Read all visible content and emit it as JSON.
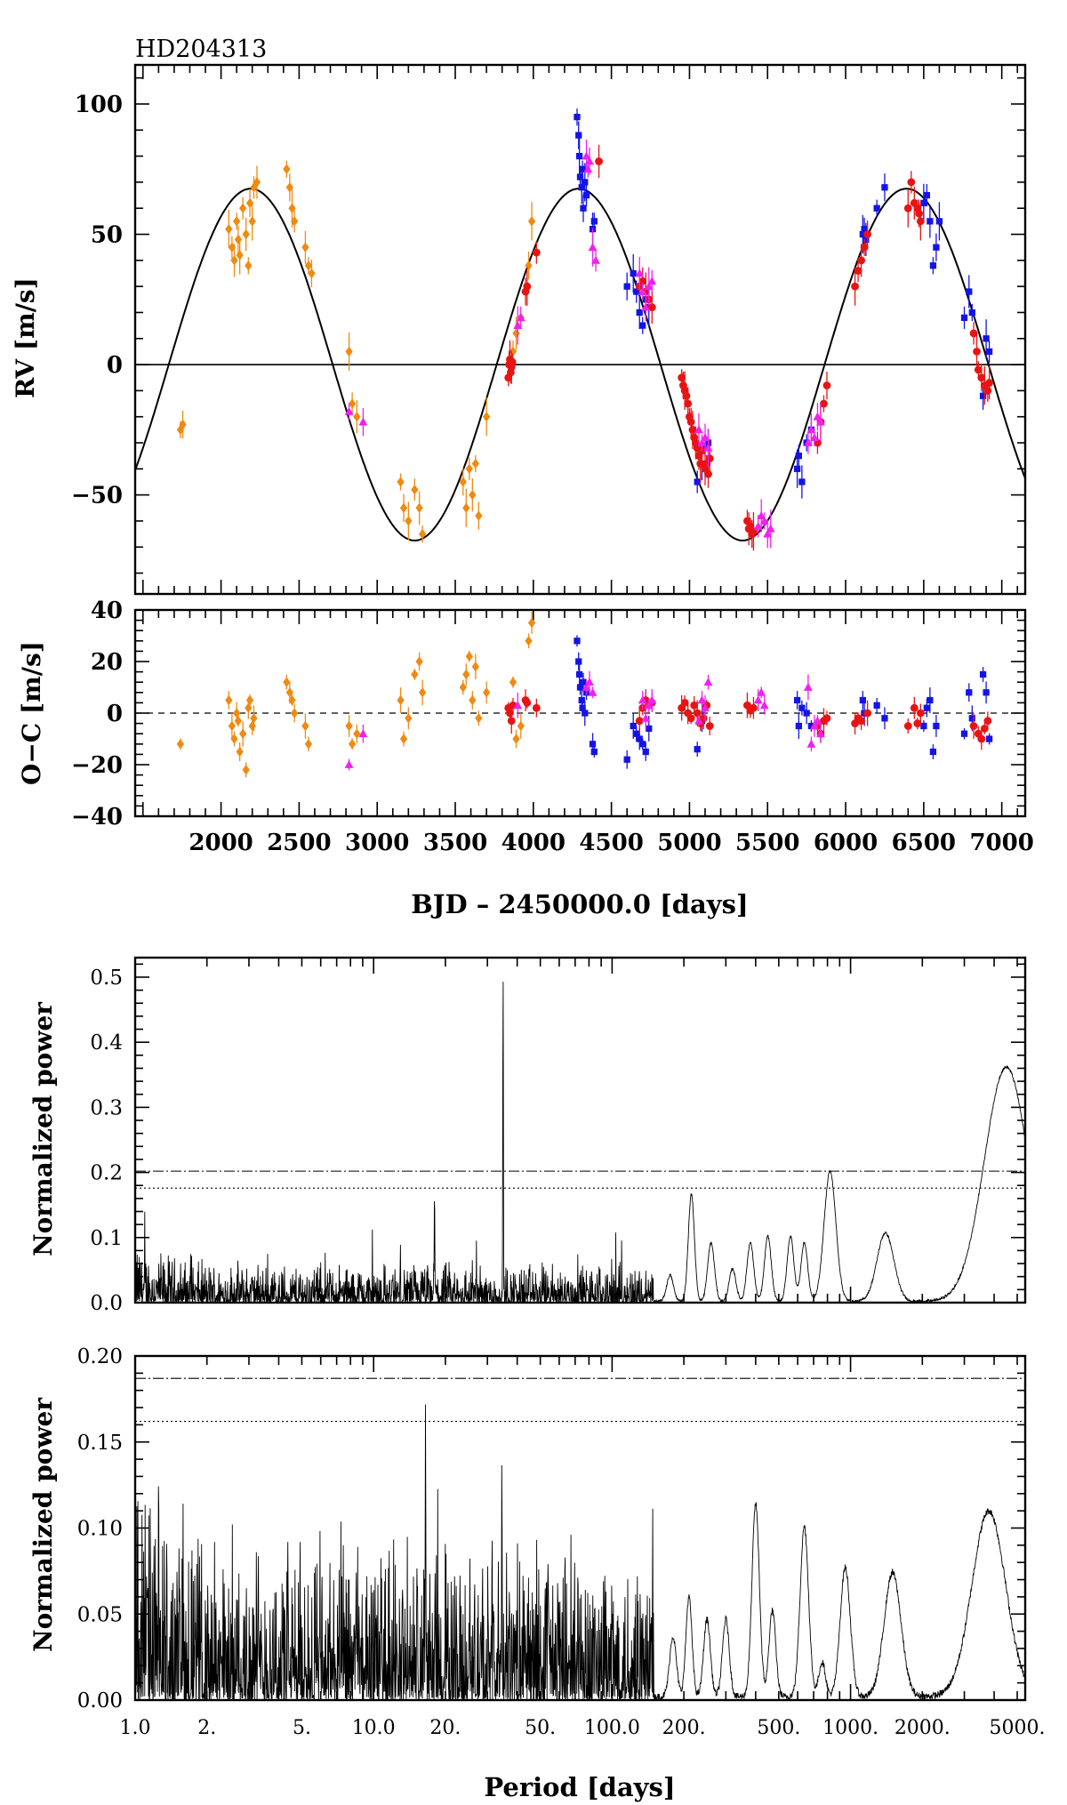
{
  "colors": {
    "harps_old": "#f08a10",
    "harps_new": "#1414e6",
    "hires": "#e81414",
    "keck": "#ee22ee",
    "curve": "#000000"
  },
  "chart_data": [
    {
      "type": "scatter",
      "id": "rv",
      "title": "HD204313",
      "xlabel": "",
      "ylabel": "RV [m/s]",
      "xlim": [
        1450,
        7150
      ],
      "ylim": [
        -88,
        115
      ],
      "yticks": [
        -50,
        0,
        50,
        100
      ],
      "ytick_labels": [
        "−50",
        "0",
        "50",
        "100"
      ],
      "model": {
        "amplitude": 67.5,
        "period": 2100,
        "t_zero": 1665,
        "description": "Keplerian fit"
      },
      "series": [
        {
          "name": "set1",
          "marker": "diamond",
          "color": "#f08a10",
          "x": [
            1740,
            1755,
            2050,
            2070,
            2085,
            2100,
            2110,
            2120,
            2140,
            2160,
            2175,
            2185,
            2200,
            2210,
            2230,
            2420,
            2440,
            2455,
            2470,
            2540,
            2560,
            2580,
            2820,
            2840,
            2870,
            3150,
            3170,
            3200,
            3240,
            3270,
            3290,
            3550,
            3570,
            3590,
            3610,
            3630,
            3650,
            3700,
            3870,
            3890,
            3920,
            3970,
            3990
          ],
          "y": [
            -25,
            -23,
            52,
            45,
            40,
            55,
            48,
            42,
            60,
            50,
            38,
            62,
            55,
            68,
            70,
            75,
            68,
            60,
            55,
            45,
            38,
            35,
            5,
            -15,
            -20,
            -45,
            -55,
            -60,
            -48,
            -55,
            -65,
            -45,
            -55,
            -40,
            -50,
            -38,
            -58,
            -20,
            5,
            12,
            18,
            38,
            55
          ]
        },
        {
          "name": "set2",
          "marker": "square",
          "color": "#1414e6",
          "x": [
            4280,
            4290,
            4295,
            4300,
            4310,
            4315,
            4320,
            4330,
            4340,
            4380,
            4390,
            4600,
            4640,
            4660,
            4680,
            4700,
            4720,
            4740,
            5050,
            5080,
            5100,
            5120,
            5690,
            5700,
            5720,
            5750,
            5780,
            6110,
            6120,
            6130,
            6200,
            6250,
            6500,
            6520,
            6540,
            6560,
            6580,
            6600,
            6760,
            6790,
            6810,
            6880,
            6900,
            6920
          ],
          "y": [
            95,
            88,
            80,
            72,
            68,
            75,
            60,
            70,
            65,
            52,
            55,
            30,
            35,
            28,
            20,
            15,
            25,
            22,
            -45,
            -38,
            -32,
            -30,
            -40,
            -35,
            -45,
            -30,
            -25,
            50,
            52,
            48,
            60,
            68,
            62,
            65,
            55,
            38,
            45,
            55,
            18,
            28,
            20,
            -12,
            10,
            5
          ]
        },
        {
          "name": "set3",
          "marker": "circle",
          "color": "#e81414",
          "x": [
            3840,
            3845,
            3850,
            3855,
            3860,
            3865,
            3950,
            3960,
            4020,
            4420,
            4680,
            4700,
            4720,
            4740,
            4760,
            4950,
            4960,
            4970,
            4980,
            4990,
            5000,
            5010,
            5020,
            5030,
            5040,
            5050,
            5060,
            5070,
            5080,
            5100,
            5110,
            5120,
            5130,
            5370,
            5380,
            5390,
            5400,
            5410,
            5820,
            5840,
            5860,
            5880,
            6060,
            6080,
            6100,
            6120,
            6140,
            6400,
            6420,
            6440,
            6460,
            6470,
            6480,
            6820,
            6840,
            6850,
            6870,
            6890,
            6910,
            6920
          ],
          "y": [
            -5,
            0,
            2,
            -3,
            -1,
            1,
            28,
            30,
            43,
            78,
            30,
            32,
            28,
            25,
            22,
            -5,
            -8,
            -10,
            -12,
            -15,
            -20,
            -22,
            -25,
            -28,
            -30,
            -32,
            -35,
            -38,
            -33,
            -40,
            -38,
            -42,
            -36,
            -60,
            -63,
            -62,
            -65,
            -64,
            -30,
            -22,
            -15,
            -8,
            30,
            36,
            40,
            45,
            50,
            60,
            70,
            62,
            60,
            58,
            55,
            12,
            5,
            -2,
            -5,
            -8,
            -10,
            -7
          ]
        },
        {
          "name": "set4",
          "marker": "triangle",
          "color": "#ee22ee",
          "x": [
            2820,
            2910,
            3900,
            3920,
            4340,
            4350,
            4360,
            4380,
            4400,
            4680,
            4700,
            4720,
            4740,
            4760,
            5060,
            5080,
            5100,
            5120,
            5440,
            5460,
            5480,
            5500,
            5520,
            5760,
            5780,
            5800,
            5820,
            5840
          ],
          "y": [
            -18,
            -22,
            15,
            18,
            80,
            75,
            78,
            45,
            40,
            35,
            28,
            22,
            30,
            32,
            -25,
            -30,
            -28,
            -32,
            -62,
            -58,
            -60,
            -65,
            -63,
            -30,
            -25,
            -28,
            -20,
            -22
          ]
        }
      ]
    },
    {
      "type": "scatter",
      "id": "oc",
      "title": "",
      "xlabel": "BJD – 2450000.0 [days]",
      "ylabel": "O−C [m/s]",
      "xlim": [
        1450,
        7150
      ],
      "ylim": [
        -40,
        40
      ],
      "yticks": [
        -40,
        -20,
        0,
        20,
        40
      ],
      "ytick_labels": [
        "−40",
        "−20",
        "0",
        "20",
        "40"
      ],
      "xticks": [
        2000,
        2500,
        3000,
        3500,
        4000,
        4500,
        5000,
        5500,
        6000,
        6500,
        7000
      ],
      "xtick_labels": [
        "2000",
        "2500",
        "3000",
        "3500",
        "4000",
        "4500",
        "5000",
        "5500",
        "6000",
        "6500",
        "7000"
      ],
      "series": [
        {
          "name": "set1",
          "marker": "diamond",
          "color": "#f08a10",
          "x": [
            1740,
            2050,
            2070,
            2085,
            2100,
            2110,
            2120,
            2140,
            2160,
            2175,
            2185,
            2200,
            2210,
            2420,
            2440,
            2455,
            2470,
            2540,
            2560,
            2820,
            2840,
            2870,
            3150,
            3170,
            3200,
            3240,
            3270,
            3290,
            3550,
            3570,
            3590,
            3610,
            3630,
            3650,
            3700,
            3870,
            3890,
            3920,
            3970,
            3990
          ],
          "y": [
            -12,
            5,
            -5,
            -10,
            0,
            -3,
            -15,
            -8,
            -22,
            2,
            5,
            -5,
            -2,
            12,
            8,
            5,
            0,
            -5,
            -12,
            -5,
            -12,
            -8,
            5,
            -10,
            -2,
            15,
            20,
            8,
            10,
            15,
            22,
            5,
            18,
            -2,
            8,
            12,
            -10,
            -5,
            28,
            35
          ]
        },
        {
          "name": "set2",
          "marker": "square",
          "color": "#1414e6",
          "x": [
            4280,
            4290,
            4295,
            4300,
            4310,
            4315,
            4320,
            4330,
            4340,
            4380,
            4390,
            4600,
            4640,
            4660,
            4680,
            4700,
            4720,
            4740,
            5050,
            5080,
            5100,
            5690,
            5700,
            5720,
            5750,
            5780,
            6110,
            6120,
            6200,
            6250,
            6500,
            6520,
            6540,
            6560,
            6580,
            6760,
            6790,
            6810,
            6880,
            6900,
            6920
          ],
          "y": [
            28,
            20,
            15,
            10,
            5,
            2,
            12,
            0,
            8,
            -12,
            -15,
            -18,
            -5,
            -8,
            -10,
            -12,
            -15,
            -6,
            -14,
            -3,
            2,
            5,
            -5,
            2,
            0,
            -5,
            5,
            0,
            3,
            -2,
            -5,
            2,
            5,
            -15,
            -5,
            -8,
            8,
            -2,
            15,
            8,
            -10
          ]
        },
        {
          "name": "set3",
          "marker": "circle",
          "color": "#e81414",
          "x": [
            3840,
            3850,
            3860,
            3870,
            3950,
            3960,
            4020,
            4680,
            4700,
            4720,
            4740,
            4760,
            4950,
            4970,
            4990,
            5010,
            5030,
            5050,
            5070,
            5090,
            5110,
            5130,
            5370,
            5390,
            5410,
            5820,
            5840,
            5860,
            5880,
            6060,
            6080,
            6100,
            6140,
            6400,
            6440,
            6460,
            6480,
            6820,
            6850,
            6870,
            6890,
            6910
          ],
          "y": [
            2,
            0,
            -3,
            3,
            5,
            4,
            2,
            -3,
            2,
            5,
            3,
            4,
            2,
            4,
            0,
            -2,
            3,
            0,
            -4,
            -2,
            3,
            -5,
            3,
            1,
            2,
            -5,
            -8,
            -3,
            -2,
            -4,
            -2,
            -3,
            0,
            -5,
            2,
            -4,
            0,
            -5,
            -8,
            -10,
            -6,
            -3
          ]
        },
        {
          "name": "set4",
          "marker": "triangle",
          "color": "#ee22ee",
          "x": [
            2820,
            2910,
            3900,
            4340,
            4360,
            4380,
            4700,
            4720,
            4740,
            4760,
            5060,
            5080,
            5100,
            5120,
            5440,
            5460,
            5480,
            5760,
            5780,
            5800,
            5820,
            5840
          ],
          "y": [
            -20,
            -8,
            3,
            10,
            12,
            8,
            5,
            -2,
            3,
            5,
            -3,
            5,
            2,
            12,
            5,
            8,
            3,
            10,
            -12,
            -5,
            -3,
            -8
          ]
        }
      ]
    },
    {
      "type": "line",
      "id": "periodogram1",
      "title": "",
      "xlabel": "",
      "ylabel": "Normalized power",
      "xscale": "log",
      "xlim": [
        1.0,
        5400
      ],
      "ylim": [
        0,
        0.53
      ],
      "yticks": [
        0,
        0.1,
        0.2,
        0.3,
        0.4,
        0.5
      ],
      "ytick_labels": [
        "0.0",
        "0.1",
        "0.2",
        "0.3",
        "0.4",
        "0.5"
      ],
      "fap_levels": [
        0.202,
        0.176
      ],
      "peaks": [
        {
          "period": 34.9,
          "power": 0.515
        },
        {
          "period": 18.0,
          "power": 0.175
        },
        {
          "period": 215,
          "power": 0.165
        },
        {
          "period": 820,
          "power": 0.2
        },
        {
          "period": 1400,
          "power": 0.105
        },
        {
          "period": 4500,
          "power": 0.36
        }
      ]
    },
    {
      "type": "line",
      "id": "periodogram2",
      "title": "",
      "xlabel": "Period [days]",
      "ylabel": "Normalized power",
      "xscale": "log",
      "xlim": [
        1.0,
        5400
      ],
      "ylim": [
        0,
        0.2
      ],
      "yticks": [
        0,
        0.05,
        0.1,
        0.15,
        0.2
      ],
      "ytick_labels": [
        "0.00",
        "0.05",
        "0.10",
        "0.15",
        "0.20"
      ],
      "xticks": [
        1,
        2,
        5,
        10,
        20,
        50,
        100,
        200,
        500,
        1000,
        2000,
        5000
      ],
      "xtick_labels": [
        "1.0",
        "2.",
        "5.",
        "10.0",
        "20.",
        "50.",
        "100.0",
        "200.",
        "500.",
        "1000.",
        "2000.",
        "5000."
      ],
      "fap_levels": [
        0.187,
        0.162
      ],
      "peaks": [
        {
          "period": 16.5,
          "power": 0.173
        },
        {
          "period": 34.5,
          "power": 0.142
        },
        {
          "period": 400,
          "power": 0.112
        },
        {
          "period": 640,
          "power": 0.099
        },
        {
          "period": 3800,
          "power": 0.108
        }
      ]
    }
  ]
}
